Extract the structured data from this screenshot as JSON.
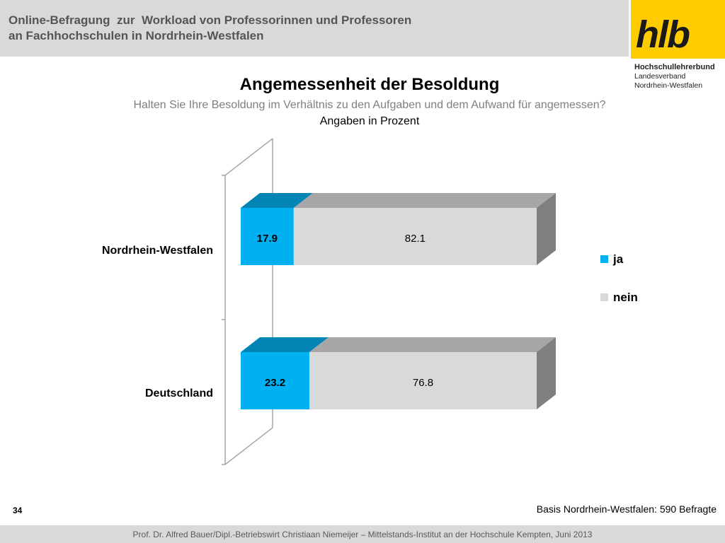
{
  "header": {
    "title": "Online-Befragung  zur  Workload von Professorinnen und Professoren\nan Fachhochschulen in Nordrhein-Westfalen"
  },
  "logo": {
    "mark": "hlb",
    "line1": "Hochschullehrerbund",
    "line2": "Landesverband",
    "line3": "Nordrhein-Westfalen",
    "color": "#ffcc00"
  },
  "chart_data": {
    "type": "bar",
    "orientation": "horizontal",
    "stacked": true,
    "title": "Angemessenheit der Besoldung",
    "subtitle": "Halten Sie Ihre Besoldung im Verhältnis zu den Aufgaben und dem Aufwand für angemessen?",
    "unit_label": "Angaben in Prozent",
    "categories": [
      "Nordrhein-Westfalen",
      "Deutschland"
    ],
    "series": [
      {
        "name": "ja",
        "values": [
          17.9,
          23.2
        ],
        "labels": [
          "17.9",
          "23.2"
        ],
        "color": "#00b0f0"
      },
      {
        "name": "nein",
        "values": [
          82.1,
          76.8
        ],
        "labels": [
          "82.1",
          "76.8"
        ],
        "color": "#d9d9d9"
      }
    ],
    "xlim": [
      0,
      100
    ],
    "legend_position": "right",
    "grid": false
  },
  "footer": {
    "basis": "Basis Nordrhein-Westfalen: 590 Befragte",
    "page": "34",
    "credits": "Prof. Dr. Alfred Bauer/Dipl.-Betriebswirt Christiaan Niemeijer – Mittelstands-Institut an der Hochschule Kempten, Juni 2013"
  }
}
